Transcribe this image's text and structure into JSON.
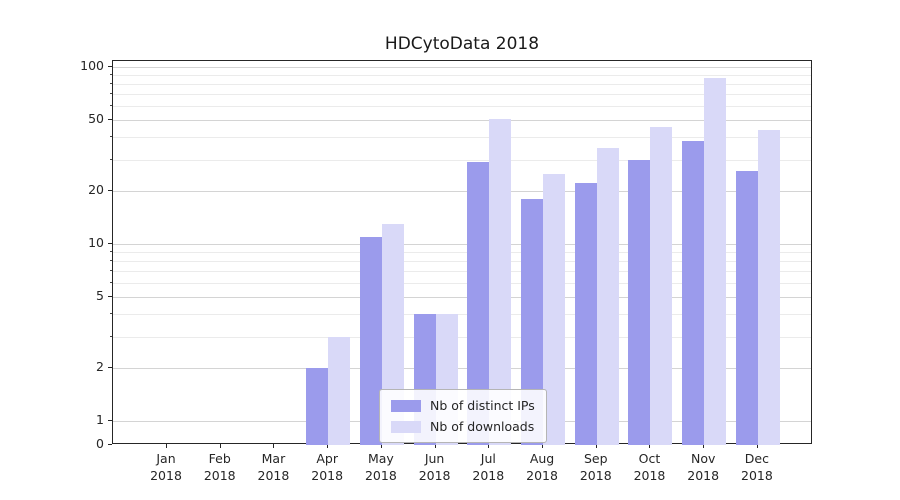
{
  "chart_data": {
    "type": "bar",
    "title": "HDCytoData 2018",
    "categories": [
      "Jan 2018",
      "Feb 2018",
      "Mar 2018",
      "Apr 2018",
      "May 2018",
      "Jun 2018",
      "Jul 2018",
      "Aug 2018",
      "Sep 2018",
      "Oct 2018",
      "Nov 2018",
      "Dec 2018"
    ],
    "series": [
      {
        "name": "Nb of distinct IPs",
        "color": "#9b9bec",
        "values": [
          0,
          0,
          0,
          2,
          11,
          4,
          29,
          18,
          22,
          30,
          38,
          26
        ]
      },
      {
        "name": "Nb of downloads",
        "color": "#d9d9f8",
        "values": [
          0,
          0,
          0,
          3,
          13,
          4,
          51,
          25,
          35,
          46,
          87,
          44
        ]
      }
    ],
    "yscale": "log",
    "yticks": [
      0,
      1,
      2,
      5,
      10,
      20,
      50,
      100
    ],
    "ylim_top": 100,
    "grid": "horizontal",
    "legend_position": "bottom-center",
    "colors": {
      "background": "#ffffff",
      "grid_major": "#d4d4d4",
      "grid_minor": "#ebebeb",
      "axis": "#262626"
    }
  }
}
